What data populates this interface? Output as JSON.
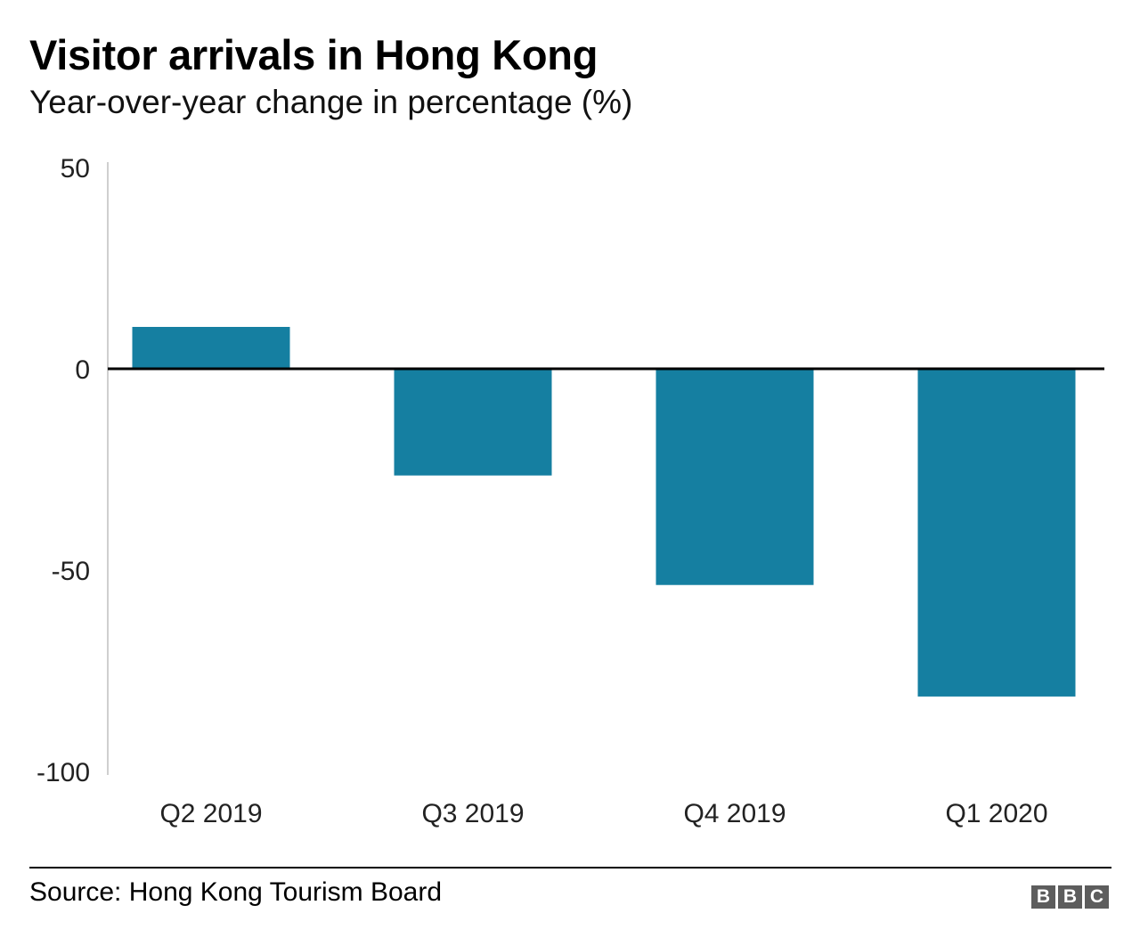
{
  "header": {
    "title": "Visitor arrivals in Hong Kong",
    "subtitle": "Year-over-year change in percentage (%)"
  },
  "chart_data": {
    "type": "bar",
    "title": "Visitor arrivals in Hong Kong",
    "subtitle": "Year-over-year change in percentage (%)",
    "xlabel": "",
    "ylabel": "",
    "categories": [
      "Q2 2019",
      "Q3 2019",
      "Q4 2019",
      "Q1 2020"
    ],
    "values": [
      10.4,
      -26.5,
      -53.7,
      -81.4
    ],
    "ylim": [
      -100,
      50
    ],
    "yticks": [
      50,
      0,
      -50,
      -100
    ],
    "ytick_labels": [
      "50",
      "0",
      "-50",
      "-100"
    ],
    "grid": false,
    "legend": "none",
    "bar_color": "#157fa1",
    "zero_line_color": "#000000"
  },
  "footer": {
    "source": "Source: Hong Kong Tourism Board",
    "logo_letters": [
      "B",
      "B",
      "C"
    ]
  }
}
